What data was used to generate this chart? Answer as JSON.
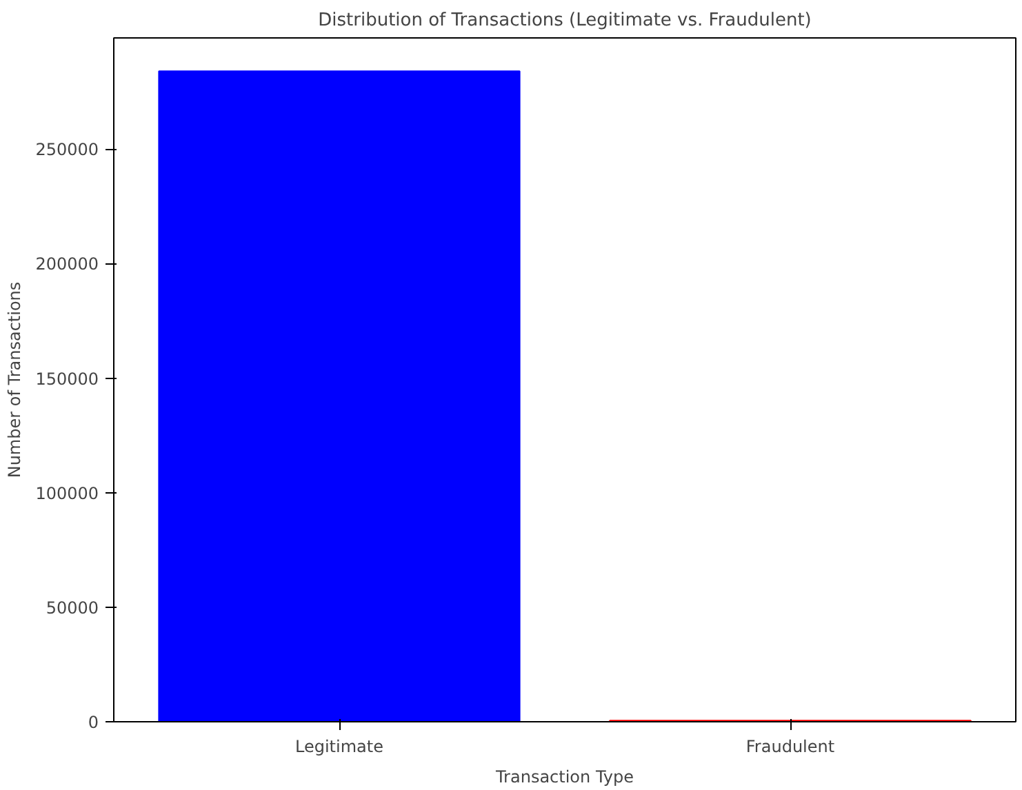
{
  "chart_data": {
    "type": "bar",
    "title": "Distribution of Transactions (Legitimate vs. Fraudulent)",
    "xlabel": "Transaction Type",
    "ylabel": "Number of Transactions",
    "categories": [
      "Legitimate",
      "Fraudulent"
    ],
    "values": [
      284000,
      500
    ],
    "colors": [
      "#0000ff",
      "#ff0000"
    ],
    "ylim": [
      0,
      298531
    ],
    "yticks": [
      0,
      50000,
      100000,
      150000,
      200000,
      250000
    ],
    "grid": false
  }
}
